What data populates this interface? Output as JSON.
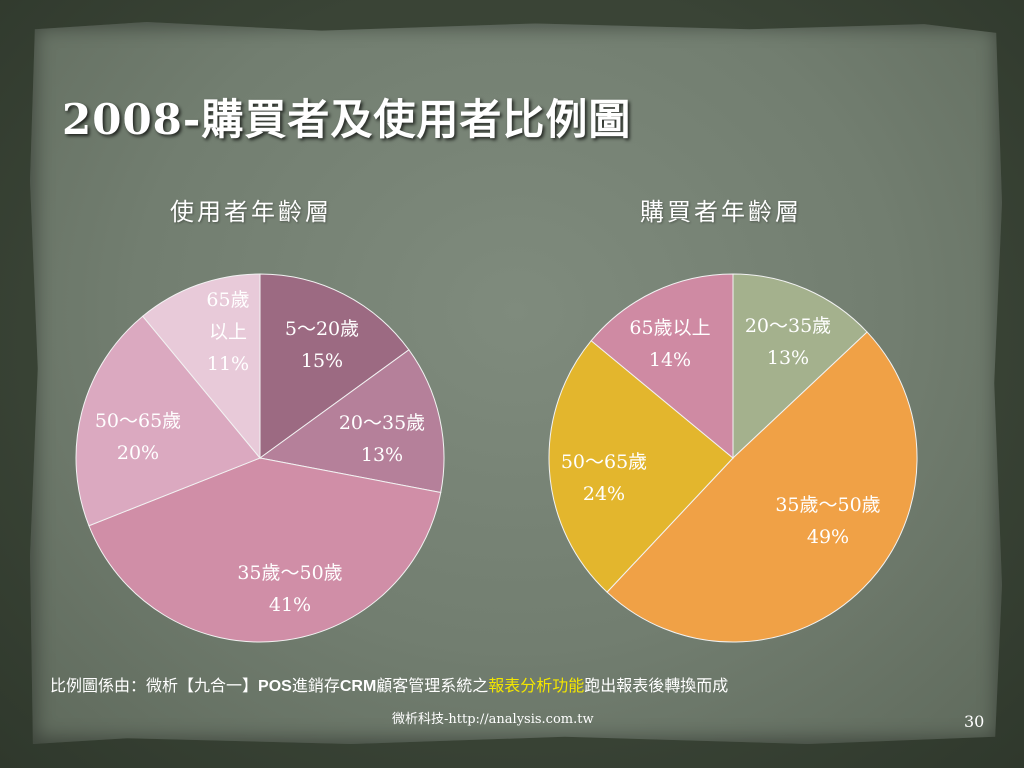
{
  "slide": {
    "title": "2008-購買者及使用者比例圖",
    "note": {
      "prefix": "比例圖係由：微析【九合一】",
      "pos": "POS",
      "mid1": "進銷存",
      "crm": "CRM",
      "mid2": "顧客管理系統之",
      "highlight": "報表分析功能",
      "suffix": "跑出報表後轉換而成"
    },
    "footer": "微析科技-http://analysis.com.tw",
    "page_number": "30"
  },
  "chart_data": [
    {
      "type": "pie",
      "title": "使用者年齡層",
      "slices": [
        {
          "label_lines": [
            "5～20歲",
            "15%"
          ],
          "value": 15,
          "color": "#9c6a82"
        },
        {
          "label_lines": [
            "20～35歲",
            "13%"
          ],
          "value": 13,
          "color": "#b5809a"
        },
        {
          "label_lines": [
            "35歲～50歲",
            "41%"
          ],
          "value": 41,
          "color": "#d08ea7"
        },
        {
          "label_lines": [
            "50～65歲",
            "20%"
          ],
          "value": 20,
          "color": "#dba9c0"
        },
        {
          "label_lines": [
            "65歲",
            "以上",
            "11%"
          ],
          "value": 11,
          "color": "#e8cad9"
        }
      ]
    },
    {
      "type": "pie",
      "title": "購買者年齡層",
      "slices": [
        {
          "label_lines": [
            "20～35歲",
            "13%"
          ],
          "value": 13,
          "color": "#a4b18d"
        },
        {
          "label_lines": [
            "35歲～50歲",
            "49%"
          ],
          "value": 49,
          "color": "#f0a146"
        },
        {
          "label_lines": [
            "50～65歲",
            "24%"
          ],
          "value": 24,
          "color": "#e3b62d"
        },
        {
          "label_lines": [
            "65歲以上",
            "14%"
          ],
          "value": 14,
          "color": "#cf8aa3"
        }
      ]
    }
  ]
}
